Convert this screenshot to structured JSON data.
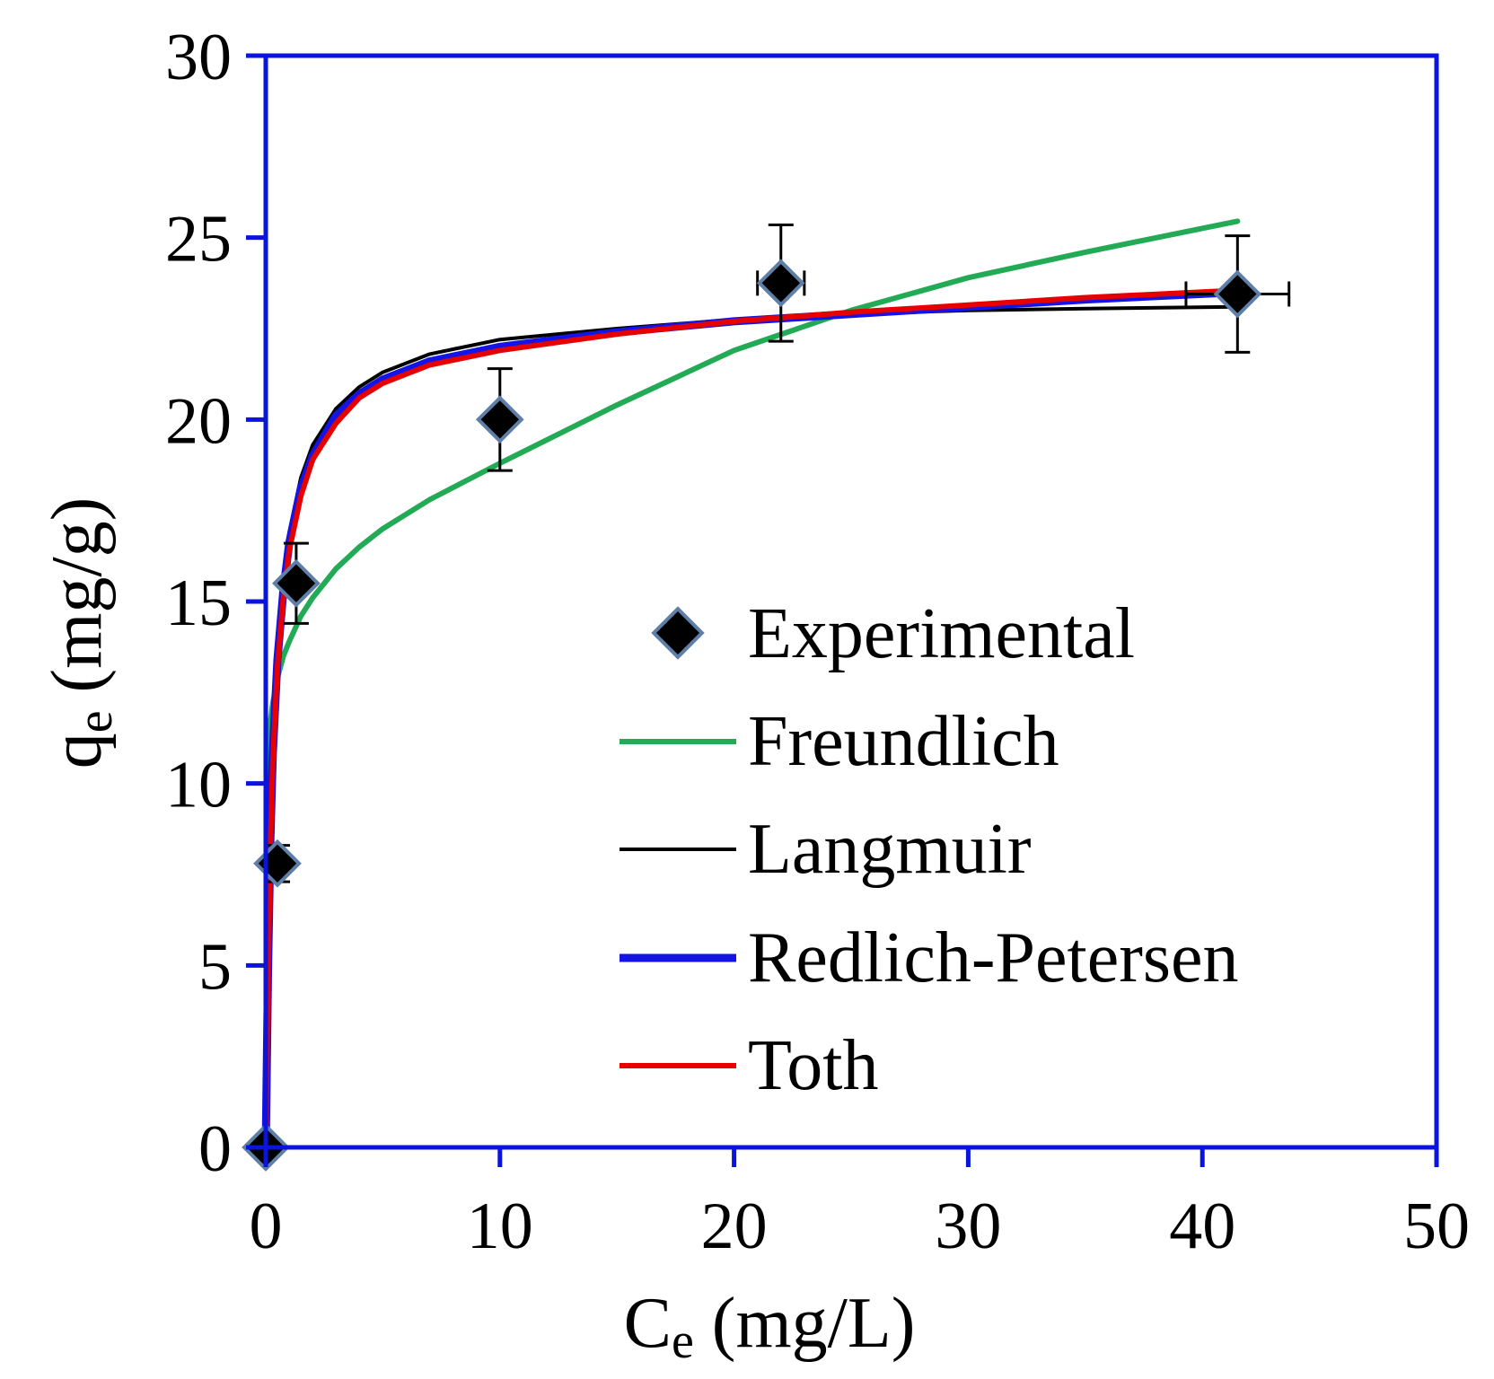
{
  "chart_data": {
    "type": "scatter",
    "title": "",
    "xlabel": {
      "main": "C",
      "sub": "e",
      "unit": " (mg/L)"
    },
    "ylabel": {
      "main": "q",
      "sub": "e",
      "unit": " (mg/g)"
    },
    "xlim": [
      0,
      50
    ],
    "ylim": [
      0,
      30
    ],
    "xticks": [
      0,
      10,
      20,
      30,
      40,
      50
    ],
    "yticks": [
      0,
      5,
      10,
      15,
      20,
      25,
      30
    ],
    "xtick_labels": [
      "0",
      "10",
      "20",
      "30",
      "40",
      "50"
    ],
    "ytick_labels": [
      "0",
      "5",
      "10",
      "15",
      "20",
      "25",
      "30"
    ],
    "grid": false,
    "legend_position": "lower-right",
    "experimental": {
      "name": "Experimental",
      "points": [
        {
          "x": 0.0,
          "y": 0.0,
          "xerr": 0.0,
          "yerr": 0.0
        },
        {
          "x": 0.5,
          "y": 7.8,
          "xerr": 0.3,
          "yerr": 0.5
        },
        {
          "x": 1.3,
          "y": 15.5,
          "xerr": 0.3,
          "yerr": 1.1
        },
        {
          "x": 10.0,
          "y": 20.0,
          "xerr": 0.0,
          "yerr": 1.4
        },
        {
          "x": 22.0,
          "y": 23.75,
          "xerr": 1.0,
          "yerr": 1.6
        },
        {
          "x": 41.5,
          "y": 23.45,
          "xerr": 2.2,
          "yerr": 1.6
        }
      ]
    },
    "series": [
      {
        "name": "Freundlich",
        "color": "#22aa55",
        "x": [
          0.05,
          0.1,
          0.2,
          0.3,
          0.5,
          0.75,
          1,
          1.5,
          2,
          3,
          4,
          5,
          7,
          10,
          15,
          20,
          25,
          30,
          35,
          41.5
        ],
        "y": [
          10.2,
          10.9,
          11.7,
          12.2,
          12.9,
          13.5,
          13.9,
          14.6,
          15.1,
          15.9,
          16.5,
          17.0,
          17.8,
          18.8,
          20.4,
          21.9,
          23.0,
          23.9,
          24.6,
          25.45
        ]
      },
      {
        "name": "Langmuir",
        "color": "#000000",
        "x": [
          0,
          0.1,
          0.2,
          0.3,
          0.5,
          0.75,
          1,
          1.5,
          2,
          3,
          4,
          5,
          7,
          10,
          15,
          20,
          25,
          30,
          35,
          41.5
        ],
        "y": [
          0,
          5.5,
          9.0,
          11.2,
          13.8,
          15.7,
          16.9,
          18.4,
          19.3,
          20.3,
          20.9,
          21.3,
          21.8,
          22.2,
          22.5,
          22.75,
          22.9,
          23.0,
          23.05,
          23.1
        ]
      },
      {
        "name": "Redlich-Petersen",
        "color": "#1414e6",
        "x": [
          0,
          0.1,
          0.2,
          0.3,
          0.5,
          0.75,
          1,
          1.5,
          2,
          3,
          4,
          5,
          7,
          10,
          15,
          20,
          25,
          30,
          35,
          41.5
        ],
        "y": [
          0,
          5.0,
          8.5,
          10.8,
          13.4,
          15.3,
          16.6,
          18.1,
          19.0,
          20.1,
          20.7,
          21.1,
          21.6,
          22.0,
          22.4,
          22.7,
          22.9,
          23.1,
          23.3,
          23.5
        ]
      },
      {
        "name": "Toth",
        "color": "#e60000",
        "x": [
          0,
          0.1,
          0.2,
          0.3,
          0.5,
          0.75,
          1,
          1.5,
          2,
          3,
          4,
          5,
          7,
          10,
          15,
          20,
          25,
          30,
          35,
          41.5
        ],
        "y": [
          0,
          4.8,
          8.3,
          10.6,
          13.2,
          15.1,
          16.4,
          17.9,
          18.9,
          19.9,
          20.6,
          21.0,
          21.5,
          21.9,
          22.35,
          22.7,
          22.95,
          23.15,
          23.35,
          23.55
        ]
      }
    ]
  },
  "legend": {
    "entries": [
      "Experimental",
      "Freundlich",
      "Langmuir",
      "Redlich-Petersen",
      "Toth"
    ]
  },
  "colors": {
    "frame": "#0a14dc",
    "marker_fill": "#000000",
    "marker_edge": "#5f7fa8",
    "errorbar": "#000000"
  }
}
